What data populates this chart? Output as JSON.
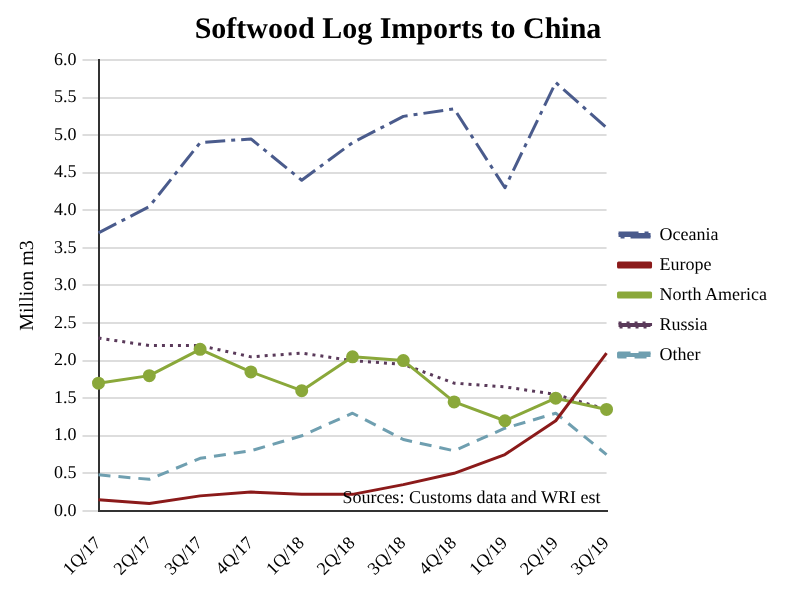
{
  "chart_data": {
    "type": "line",
    "title": "Softwood Log Imports to China",
    "ylabel": "Million m3",
    "categories": [
      "1Q/17",
      "2Q/17",
      "3Q/17",
      "4Q/17",
      "1Q/18",
      "2Q/18",
      "3Q/18",
      "4Q/18",
      "1Q/19",
      "2Q/19",
      "3Q/19"
    ],
    "series": [
      {
        "name": "Oceania",
        "color": "#4a5b8c",
        "line_style": "dashdot",
        "marker": "none",
        "values": [
          3.7,
          4.05,
          4.9,
          4.95,
          4.4,
          4.9,
          5.25,
          5.35,
          4.3,
          5.7,
          5.1
        ]
      },
      {
        "name": "Europe",
        "color": "#8b1a1a",
        "line_style": "solid",
        "marker": "none",
        "values": [
          0.15,
          0.1,
          0.2,
          0.25,
          0.22,
          0.22,
          0.35,
          0.5,
          0.75,
          1.2,
          2.1
        ]
      },
      {
        "name": "North America",
        "color": "#8aa83a",
        "line_style": "solid",
        "marker": "circle",
        "values": [
          1.7,
          1.8,
          2.15,
          1.85,
          1.6,
          2.05,
          2.0,
          1.45,
          1.2,
          1.5,
          1.35
        ]
      },
      {
        "name": "Russia",
        "color": "#5a3a5a",
        "line_style": "dotted",
        "marker": "none",
        "values": [
          2.3,
          2.2,
          2.2,
          2.05,
          2.1,
          2.0,
          1.95,
          1.7,
          1.65,
          1.55,
          1.35
        ]
      },
      {
        "name": "Other",
        "color": "#6f9fb0",
        "line_style": "dashed",
        "marker": "none",
        "values": [
          0.48,
          0.42,
          0.7,
          0.8,
          1.0,
          1.3,
          0.95,
          0.8,
          1.1,
          1.3,
          0.75
        ]
      }
    ],
    "ylim": [
      0,
      6
    ],
    "yticks": [
      {
        "value": 0,
        "label": "0.0"
      },
      0.5,
      {
        "value": 1,
        "label": "1.0"
      },
      1.5,
      {
        "value": 2,
        "label": "2.0"
      },
      2.5,
      {
        "value": 3,
        "label": "3.0"
      },
      3.5,
      {
        "value": 4,
        "label": "4.0"
      },
      4.5,
      {
        "value": 5,
        "label": "5.0"
      },
      5.5,
      {
        "value": 6,
        "label": "6.0"
      }
    ],
    "grid": "y",
    "legend": "right",
    "annotations": [
      "Sources: Customs data and WRI est"
    ]
  }
}
